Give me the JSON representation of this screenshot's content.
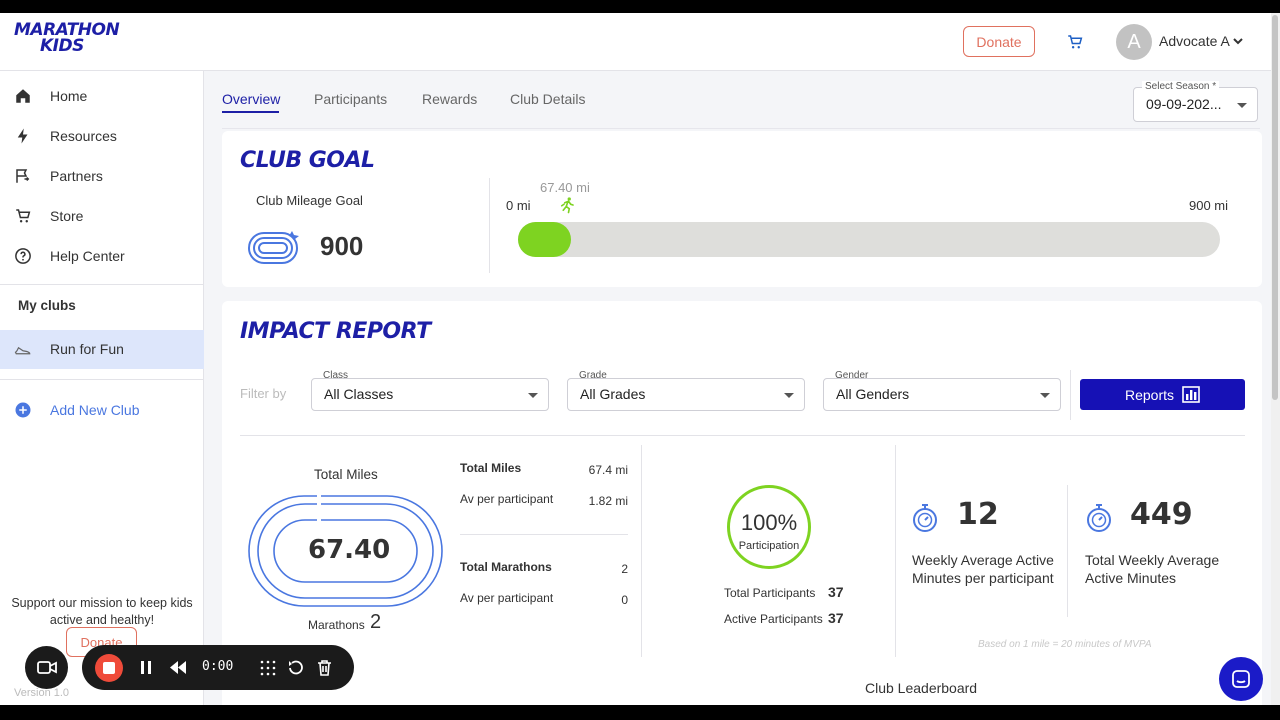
{
  "app": {
    "logo_line1": "MARATHON",
    "logo_line2": "KIDS",
    "donate_label": "Donate",
    "user_initial": "A",
    "user_name": "Advocate A"
  },
  "sidebar": {
    "items": [
      {
        "label": "Home",
        "icon": "home-icon"
      },
      {
        "label": "Resources",
        "icon": "bolt-icon"
      },
      {
        "label": "Partners",
        "icon": "flag-icon"
      },
      {
        "label": "Store",
        "icon": "cart-icon"
      },
      {
        "label": "Help Center",
        "icon": "help-icon"
      }
    ],
    "my_clubs_label": "My clubs",
    "club_name": "Run for Fun",
    "add_club_label": "Add New Club",
    "support_text": "Support our mission to keep kids active and healthy!",
    "donate_label": "Donate",
    "version": "Version 1.0"
  },
  "tabs": [
    "Overview",
    "Participants",
    "Rewards",
    "Club Details"
  ],
  "season": {
    "label": "Select Season *",
    "value": "09-09-202..."
  },
  "club_goal": {
    "title": "CLUB GOAL",
    "label": "Club Mileage Goal",
    "value": "900",
    "progress_min": "0 mi",
    "progress_max": "900 mi",
    "progress_current_label": "67.40 mi",
    "progress_current": 67.4,
    "progress_goal": 900
  },
  "impact": {
    "title": "IMPACT REPORT",
    "filter_by": "Filter by",
    "filters": [
      {
        "label": "Class",
        "value": "All Classes"
      },
      {
        "label": "Grade",
        "value": "All Grades"
      },
      {
        "label": "Gender",
        "value": "All Genders"
      }
    ],
    "reports_label": "Reports",
    "total_miles_label": "Total Miles",
    "total_miles_value": "67.40",
    "marathons_label": "Marathons",
    "marathons_value": "2",
    "table": {
      "total_miles_label": "Total Miles",
      "total_miles_value": "67.4 mi",
      "avg_miles_label": "Av per participant",
      "avg_miles_value": "1.82 mi",
      "total_marathons_label": "Total Marathons",
      "total_marathons_value": "2",
      "avg_marathons_label": "Av per participant",
      "avg_marathons_value": "0"
    },
    "participation_pct": "100%",
    "participation_label": "Participation",
    "total_participants_label": "Total Participants",
    "total_participants_value": "37",
    "active_participants_label": "Active Participants",
    "active_participants_value": "37",
    "weekly_avg_value": "12",
    "weekly_avg_label": "Weekly Average Active Minutes per participant",
    "total_weekly_value": "449",
    "total_weekly_label": "Total Weekly Average Active Minutes",
    "note": "Based on 1 mile = 20 minutes of MVPA",
    "leaderboard_label": "Club Leaderboard"
  },
  "recorder": {
    "time": "0:00"
  },
  "colors": {
    "brand": "#1d1fa6",
    "accent": "#e0715f",
    "progress": "#7ed321",
    "button": "#1611b5"
  }
}
